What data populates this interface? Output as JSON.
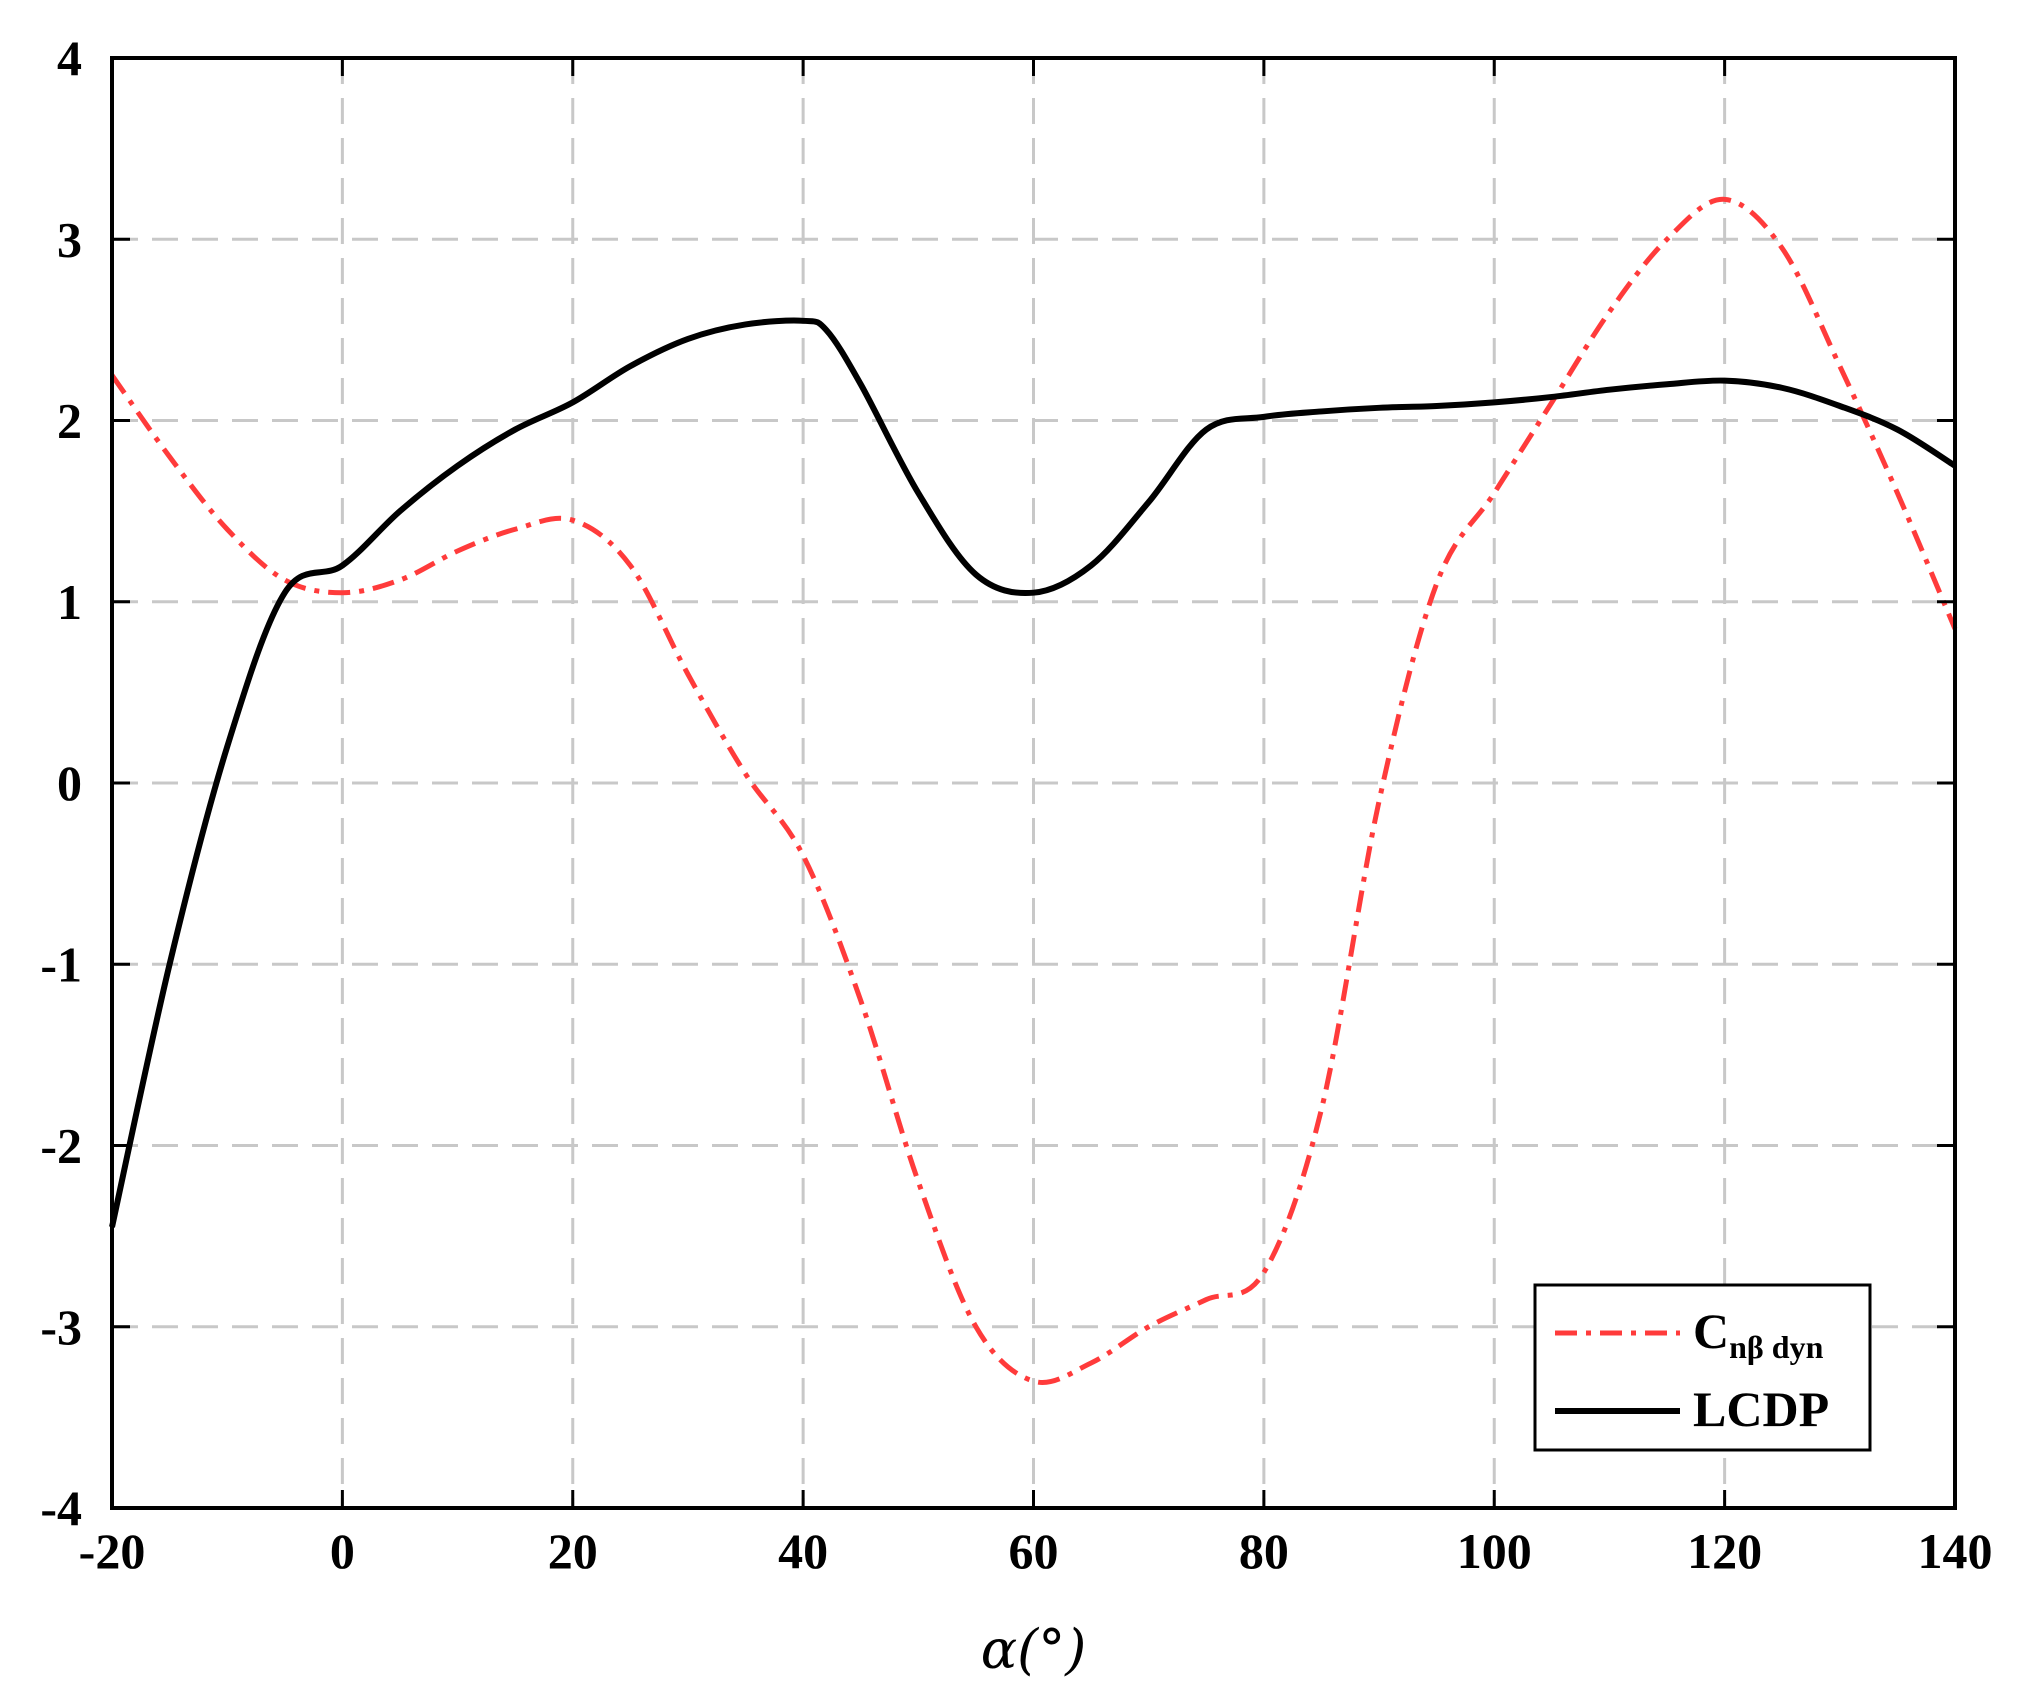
{
  "chart_data": {
    "type": "line",
    "title": "",
    "xlabel": "α(°)",
    "ylabel": "",
    "xlim": [
      -20,
      140
    ],
    "ylim": [
      -4,
      4
    ],
    "x_ticks": [
      -20,
      0,
      20,
      40,
      60,
      80,
      100,
      120,
      140
    ],
    "y_ticks": [
      -4,
      -3,
      -2,
      -1,
      0,
      1,
      2,
      3,
      4
    ],
    "grid": true,
    "legend_position": "bottom-right",
    "series": [
      {
        "name": "Cnβ dyn",
        "legend_main": "C",
        "legend_sub": "nβ dyn",
        "color": "#ff3b3b",
        "style": "dash-dot",
        "x": [
          -20,
          -15,
          -10,
          -5,
          0,
          5,
          10,
          15,
          20,
          25,
          30,
          35,
          40,
          45,
          50,
          55,
          60,
          65,
          70,
          75,
          80,
          85,
          90,
          95,
          100,
          105,
          110,
          115,
          120,
          125,
          130,
          135,
          140
        ],
        "y": [
          2.25,
          1.8,
          1.4,
          1.12,
          1.05,
          1.12,
          1.28,
          1.4,
          1.45,
          1.2,
          0.6,
          0.05,
          -0.4,
          -1.2,
          -2.2,
          -3.0,
          -3.3,
          -3.2,
          -3.0,
          -2.85,
          -2.7,
          -1.8,
          -0.1,
          1.1,
          1.6,
          2.1,
          2.6,
          3.0,
          3.22,
          2.95,
          2.3,
          1.6,
          0.85
        ]
      },
      {
        "name": "LCDP",
        "legend_main": "LCDP",
        "legend_sub": "",
        "color": "#000000",
        "style": "solid",
        "x": [
          -20,
          -15,
          -10,
          -5,
          0,
          5,
          10,
          15,
          20,
          25,
          30,
          35,
          40,
          42,
          45,
          50,
          55,
          60,
          65,
          70,
          75,
          80,
          85,
          90,
          95,
          100,
          105,
          110,
          115,
          120,
          125,
          130,
          135,
          140
        ],
        "y": [
          -2.45,
          -1.0,
          0.2,
          1.05,
          1.2,
          1.5,
          1.75,
          1.95,
          2.1,
          2.3,
          2.45,
          2.53,
          2.55,
          2.5,
          2.2,
          1.6,
          1.15,
          1.05,
          1.2,
          1.55,
          1.95,
          2.02,
          2.05,
          2.07,
          2.08,
          2.1,
          2.13,
          2.17,
          2.2,
          2.22,
          2.18,
          2.08,
          1.95,
          1.75
        ]
      }
    ]
  }
}
